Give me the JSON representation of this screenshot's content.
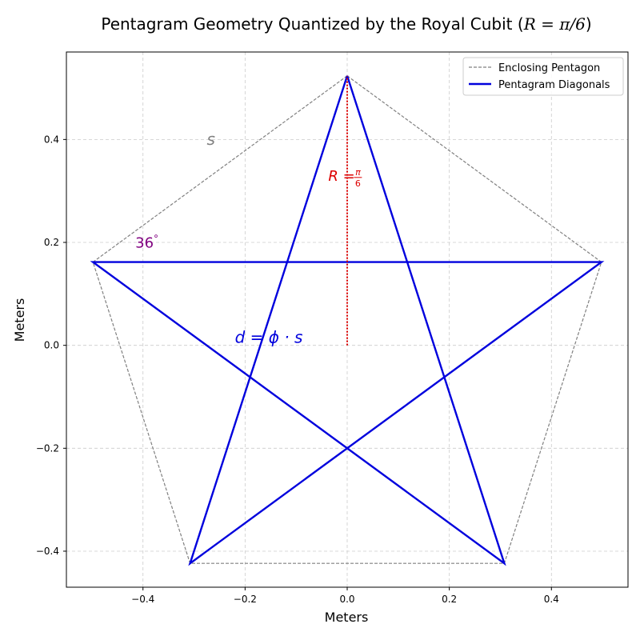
{
  "chart_data": {
    "type": "line",
    "title": "Pentagram Geometry Quantized by the Royal Cubit (R = π/6)",
    "title_prefix": "Pentagram Geometry Quantized by the Royal Cubit (",
    "title_math": "R = π/6",
    "title_suffix": ")",
    "xlabel": "Meters",
    "ylabel": "Meters",
    "xlim": [
      -0.55,
      0.55
    ],
    "ylim": [
      -0.47,
      0.57
    ],
    "xticks": [
      -0.4,
      -0.2,
      0.0,
      0.2,
      0.4
    ],
    "xtick_labels": [
      "−0.4",
      "−0.2",
      "0.0",
      "0.2",
      "0.4"
    ],
    "yticks": [
      -0.4,
      -0.2,
      0.0,
      0.2,
      0.4
    ],
    "ytick_labels": [
      "−0.4",
      "−0.2",
      "0.0",
      "0.2",
      "0.4"
    ],
    "grid": true,
    "legend_position": "top-right",
    "series": [
      {
        "name": "Enclosing Pentagon",
        "style": "dashed",
        "color": "#808080",
        "x": [
          0.0,
          0.498,
          0.3078,
          -0.3078,
          -0.498,
          0.0
        ],
        "y": [
          0.5236,
          0.1618,
          -0.4236,
          -0.4236,
          0.1618,
          0.5236
        ]
      },
      {
        "name": "Pentagram Diagonals",
        "style": "solid",
        "color": "#0000dd",
        "x": [
          0.0,
          0.3078,
          -0.498,
          0.498,
          -0.3078,
          0.0
        ],
        "y": [
          0.5236,
          -0.4236,
          0.1618,
          0.1618,
          -0.4236,
          0.5236
        ]
      }
    ],
    "radius_line": {
      "x": [
        0.0,
        0.0
      ],
      "y": [
        0.0,
        0.5236
      ],
      "color": "#dd0000",
      "style": "dotted"
    },
    "annotations": [
      {
        "id": "side",
        "text": "s",
        "x": -0.275,
        "y": 0.39,
        "color": "#808080"
      },
      {
        "id": "angle",
        "prefix": "36",
        "suffix": "°",
        "x": -0.415,
        "y": 0.19,
        "color": "#800080"
      },
      {
        "id": "radius",
        "prefix": "R = ",
        "frac_num": "π",
        "frac_den": "6",
        "x": -0.037,
        "y": 0.32,
        "color": "#dd0000"
      },
      {
        "id": "diagonal",
        "text": "d = ϕ · s",
        "x": -0.22,
        "y": 0.005,
        "color": "#0000dd"
      }
    ]
  }
}
